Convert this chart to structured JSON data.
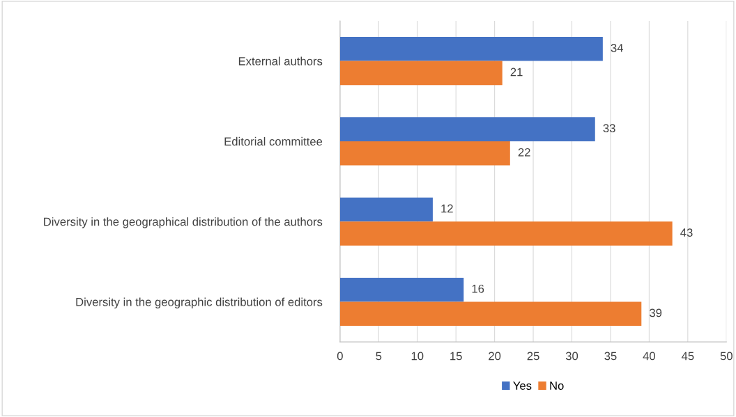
{
  "chart_data": {
    "type": "bar",
    "orientation": "horizontal",
    "categories": [
      "External authors",
      "Editorial committee",
      "Diversity in the geographical distribution of the authors",
      "Diversity in the geographic distribution of editors"
    ],
    "series": [
      {
        "name": "Yes",
        "color": "#4472c4",
        "values": [
          34,
          33,
          12,
          16
        ]
      },
      {
        "name": "No",
        "color": "#ed7d31",
        "values": [
          21,
          22,
          43,
          39
        ]
      }
    ],
    "xlim": [
      0,
      50
    ],
    "xticks": [
      0,
      5,
      10,
      15,
      20,
      25,
      30,
      35,
      40,
      45,
      50
    ],
    "grid": "x",
    "legend": "bottom",
    "data_labels": true
  }
}
